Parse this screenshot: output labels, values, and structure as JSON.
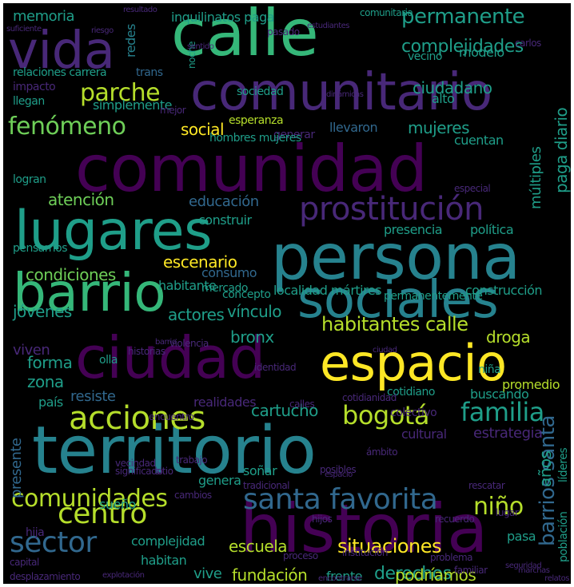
{
  "palette": {
    "purple_dark": "#440154",
    "purple": "#482878",
    "indigo": "#3e4989",
    "blue": "#31688e",
    "teal": "#26828e",
    "teal_green": "#1f9e89",
    "green": "#35b779",
    "lime": "#6ece58",
    "yellow_green": "#b5de2b",
    "yellow": "#fde725"
  },
  "words": [
    {
      "text": "comunidad"
    },
    {
      "text": "territorio"
    },
    {
      "text": "persona"
    },
    {
      "text": "historia"
    },
    {
      "text": "calle"
    },
    {
      "text": "comunitario"
    },
    {
      "text": "ciudad"
    },
    {
      "text": "espacio"
    },
    {
      "text": "lugares"
    },
    {
      "text": "barrio"
    },
    {
      "text": "sociales"
    },
    {
      "text": "vida"
    },
    {
      "text": "prostitución"
    },
    {
      "text": "acciones"
    },
    {
      "text": "comunidades"
    },
    {
      "text": "santa favorita"
    },
    {
      "text": "centro"
    },
    {
      "text": "sector"
    },
    {
      "text": "bogotá"
    },
    {
      "text": "familia"
    },
    {
      "text": "niño"
    },
    {
      "text": "fenómeno"
    },
    {
      "text": "permanente"
    },
    {
      "text": "parche"
    },
    {
      "text": "complejidades"
    },
    {
      "text": "barrios santa"
    },
    {
      "text": "habitantes calle"
    },
    {
      "text": "condiciones"
    },
    {
      "text": "escenario"
    },
    {
      "text": "cartucho"
    },
    {
      "text": "situaciones"
    },
    {
      "text": "derechos"
    },
    {
      "text": "fundación"
    },
    {
      "text": "escuela"
    },
    {
      "text": "memoria"
    },
    {
      "text": "ciudadano"
    },
    {
      "text": "social"
    },
    {
      "text": "mujeres"
    },
    {
      "text": "atención"
    },
    {
      "text": "vínculo"
    },
    {
      "text": "jóvenes"
    },
    {
      "text": "bronx"
    },
    {
      "text": "droga"
    },
    {
      "text": "zona"
    },
    {
      "text": "forma"
    },
    {
      "text": "podríamos"
    },
    {
      "text": "actores"
    },
    {
      "text": "educación"
    },
    {
      "text": "paga diario"
    },
    {
      "text": "múltiples"
    },
    {
      "text": "años"
    },
    {
      "text": "resiste"
    },
    {
      "text": "presente"
    },
    {
      "text": "redes"
    },
    {
      "text": "viven"
    },
    {
      "text": "vive"
    },
    {
      "text": "pensarnos"
    },
    {
      "text": "consumo"
    },
    {
      "text": "construir"
    },
    {
      "text": "logran"
    },
    {
      "text": "llegan"
    },
    {
      "text": "relaciones carrera"
    },
    {
      "text": "simplemente"
    },
    {
      "text": "impacto"
    },
    {
      "text": "trans"
    },
    {
      "text": "inquilinatos paga"
    },
    {
      "text": "comunitaria"
    },
    {
      "text": "esperanza"
    },
    {
      "text": "llevaron"
    },
    {
      "text": "cuentan"
    },
    {
      "text": "alto"
    },
    {
      "text": "habitante"
    },
    {
      "text": "concepto"
    },
    {
      "text": "mercado"
    },
    {
      "text": "construcción"
    },
    {
      "text": "localidad mártires"
    },
    {
      "text": "presencia"
    },
    {
      "text": "política"
    },
    {
      "text": "permanentemente"
    },
    {
      "text": "generar"
    },
    {
      "text": "hombres mujeres"
    },
    {
      "text": "sociedad"
    },
    {
      "text": "cotidiano"
    },
    {
      "text": "buscando"
    },
    {
      "text": "promedio"
    },
    {
      "text": "colectivo"
    },
    {
      "text": "niña"
    },
    {
      "text": "realidades"
    },
    {
      "text": "país"
    },
    {
      "text": "estrategia"
    },
    {
      "text": "cultural"
    },
    {
      "text": "soñar"
    },
    {
      "text": "sueño"
    },
    {
      "text": "complejidad"
    },
    {
      "text": "genera"
    },
    {
      "text": "habitan"
    },
    {
      "text": "hija"
    },
    {
      "text": "pasa"
    },
    {
      "text": "frente"
    },
    {
      "text": "líderes"
    },
    {
      "text": "población"
    },
    {
      "text": "modelo"
    },
    {
      "text": "vecino"
    },
    {
      "text": "olla"
    },
    {
      "text": "noche"
    },
    {
      "text": "sentido"
    },
    {
      "text": "resultado"
    },
    {
      "text": "suficiente"
    },
    {
      "text": "riesgo"
    },
    {
      "text": "violencia"
    },
    {
      "text": "vecindad"
    },
    {
      "text": "posibles"
    },
    {
      "text": "significado"
    },
    {
      "text": "tradicional"
    },
    {
      "text": "cambios"
    },
    {
      "text": "cotidianidad"
    },
    {
      "text": "historias"
    },
    {
      "text": "identidad"
    },
    {
      "text": "encuentro"
    },
    {
      "text": "calles"
    },
    {
      "text": "especial"
    },
    {
      "text": "mejor"
    },
    {
      "text": "ámbito"
    },
    {
      "text": "carlos"
    },
    {
      "text": "pasado"
    },
    {
      "text": "familiar"
    },
    {
      "text": "institución"
    },
    {
      "text": "hijos"
    },
    {
      "text": "rescatar"
    },
    {
      "text": "lugar"
    },
    {
      "text": "proceso"
    },
    {
      "text": "sitio"
    },
    {
      "text": "trabajo"
    },
    {
      "text": "problema"
    },
    {
      "text": "recuerdo"
    },
    {
      "text": "desplazamiento"
    },
    {
      "text": "explotación"
    },
    {
      "text": "capital"
    },
    {
      "text": "seguridad"
    },
    {
      "text": "marchas"
    },
    {
      "text": "encontrarse"
    },
    {
      "text": "relatos"
    },
    {
      "text": "barrio"
    },
    {
      "text": "ciudad"
    },
    {
      "text": "espacio"
    },
    {
      "text": "estudiantes"
    },
    {
      "text": "dinámicas"
    }
  ]
}
